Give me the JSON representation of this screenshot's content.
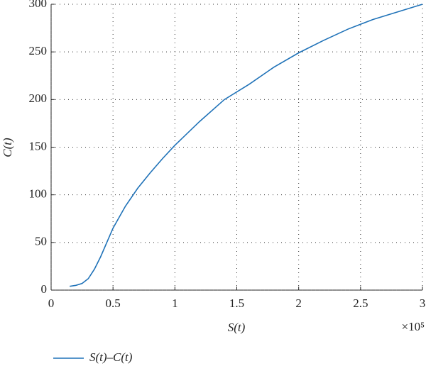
{
  "chart_data": {
    "type": "line",
    "x_label": "S(t)",
    "y_label": "C(t)",
    "x_multiplier": "×10⁵",
    "x": [
      0.15,
      0.2,
      0.25,
      0.3,
      0.35,
      0.4,
      0.45,
      0.5,
      0.6,
      0.7,
      0.8,
      0.9,
      1.0,
      1.2,
      1.4,
      1.6,
      1.8,
      2.0,
      2.2,
      2.4,
      2.6,
      2.8,
      3.0
    ],
    "series": [
      {
        "name": "S(t)–C(t)",
        "color": "#1f72b8",
        "values": [
          4,
          5,
          7,
          12,
          22,
          35,
          50,
          65,
          88,
          107,
          123,
          138,
          152,
          177,
          200,
          216,
          234,
          249,
          262,
          274,
          284,
          292,
          300
        ]
      }
    ],
    "xlim": [
      0,
      3
    ],
    "ylim": [
      0,
      300
    ],
    "xticks": [
      0,
      0.5,
      1,
      1.5,
      2,
      2.5,
      3
    ],
    "yticks": [
      0,
      50,
      100,
      150,
      200,
      250,
      300
    ],
    "grid": true,
    "legend": "bottom-left"
  }
}
